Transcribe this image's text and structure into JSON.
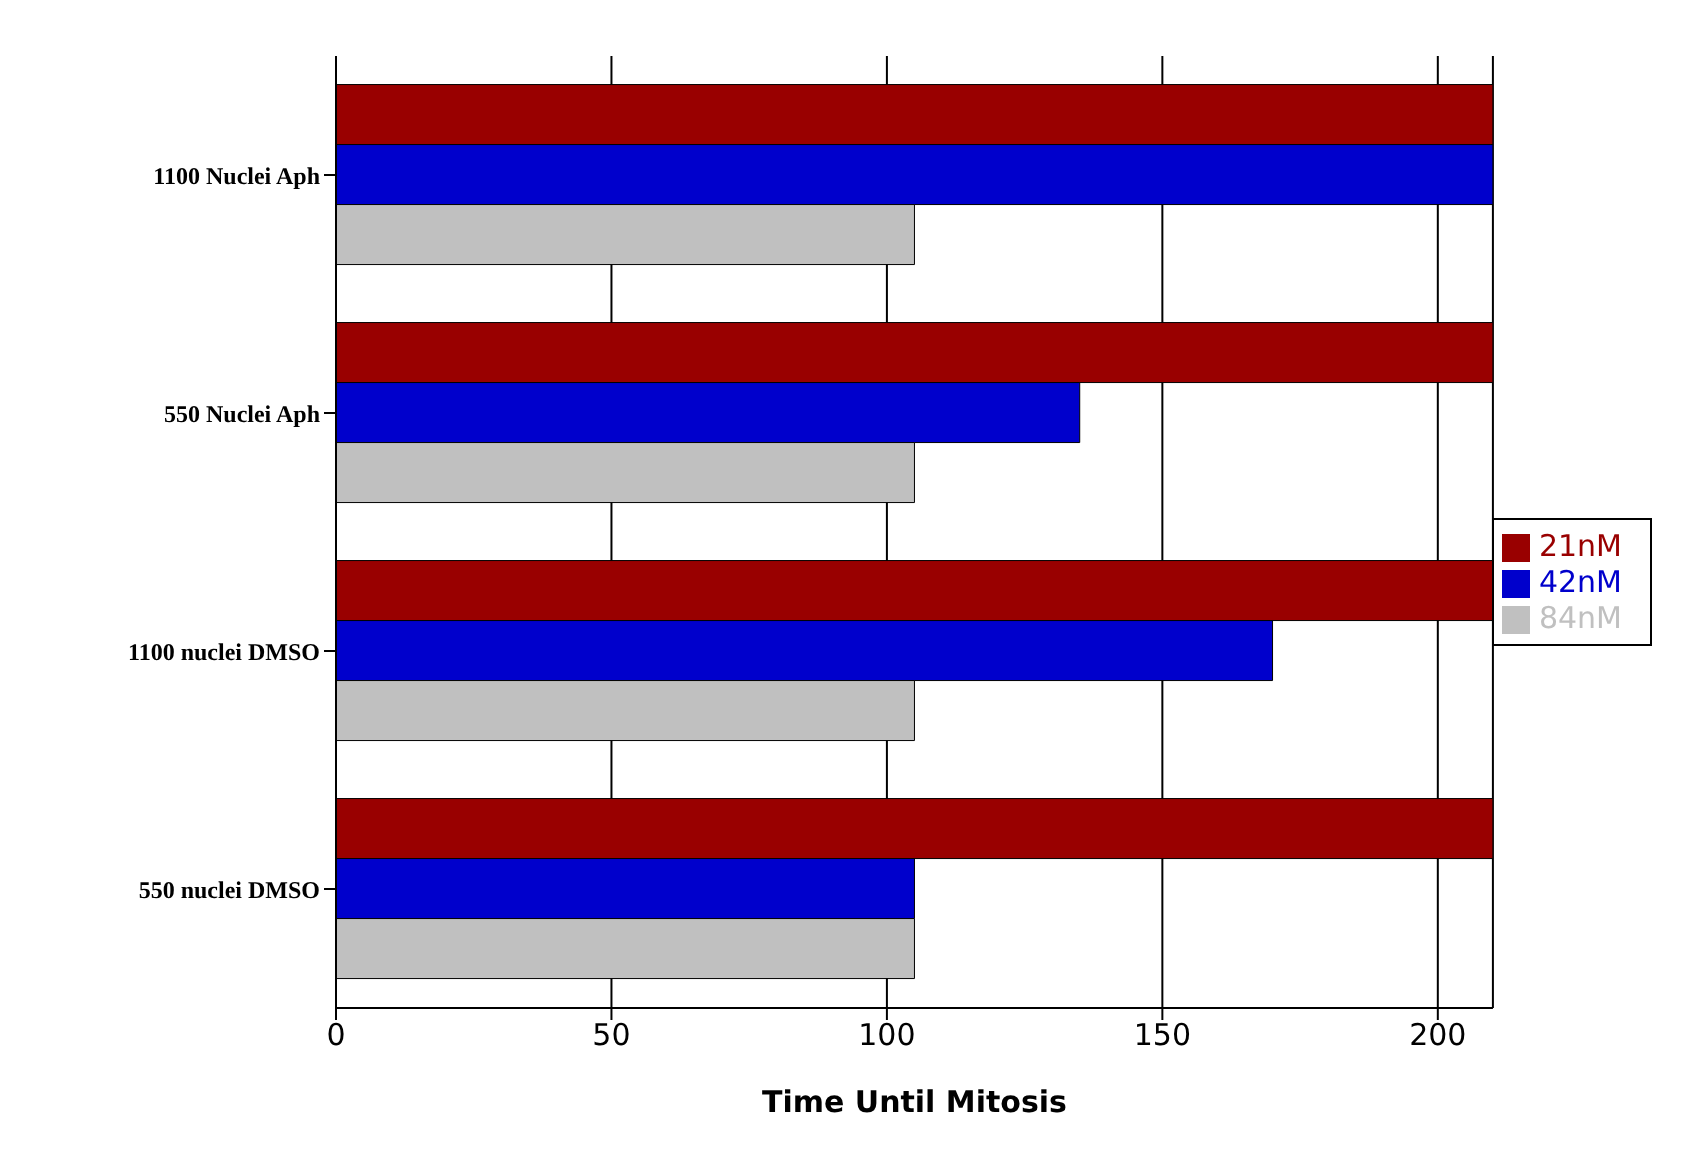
{
  "chart_data": {
    "type": "bar",
    "orientation": "horizontal",
    "xlabel": "Time Until Mitosis",
    "categories": [
      "1100  Nuclei  Aph",
      "550  Nuclei  Aph",
      "1100  nuclei  DMSO",
      "550  nuclei  DMSO"
    ],
    "series": [
      {
        "name": "21nM",
        "color": "#990000",
        "values": [
          210,
          210,
          210,
          210
        ]
      },
      {
        "name": "42nM",
        "color": "#0000cc",
        "values": [
          210,
          135,
          170,
          105
        ]
      },
      {
        "name": "84nM",
        "color": "#c0c0c0",
        "values": [
          105,
          105,
          105,
          105
        ]
      }
    ],
    "xlim": [
      0,
      210
    ],
    "xticks": [
      0,
      50,
      100,
      150,
      200
    ],
    "grid": "x",
    "legend": "right"
  }
}
